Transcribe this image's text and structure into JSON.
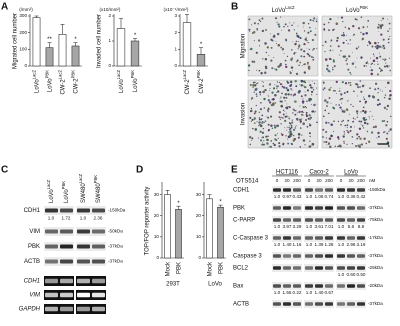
{
  "chart_data": [
    {
      "type": "bar",
      "unit": "(/mm²)",
      "ylabel": "Migrated cell number",
      "ylim": [
        0,
        300
      ],
      "yticks": [
        0,
        100,
        200,
        300
      ],
      "categories": [
        {
          "name": "LoVo",
          "sup": "LacZ"
        },
        {
          "name": "LoVo",
          "sup": "PBK"
        },
        {
          "name": "CW-2",
          "sup": "LacZ"
        },
        {
          "name": "CW-2",
          "sup": "PBK"
        }
      ],
      "values": [
        290,
        110,
        190,
        120
      ],
      "errors": [
        10,
        30,
        60,
        20
      ],
      "colors": [
        "#ffffff",
        "#a6a6a6",
        "#ffffff",
        "#a6a6a6"
      ],
      "annotations": [
        null,
        "**",
        null,
        "*"
      ]
    },
    {
      "type": "bar",
      "unit": "(x10/mm²)",
      "ylabel": "Invaded cell number",
      "ylim": [
        0,
        2
      ],
      "yticks": [
        0,
        1,
        2
      ],
      "categories": [
        {
          "name": "LoVo",
          "sup": "LacZ"
        },
        {
          "name": "LoVo",
          "sup": "PBK"
        }
      ],
      "values": [
        1.5,
        1.0
      ],
      "errors": [
        0.4,
        0.1
      ],
      "colors": [
        "#ffffff",
        "#a6a6a6"
      ],
      "annotations": [
        null,
        "*"
      ]
    },
    {
      "type": "bar",
      "unit": "(x10⁻¹/mm²)",
      "ylim": [
        0,
        3
      ],
      "yticks": [
        0,
        1,
        2,
        3
      ],
      "categories": [
        {
          "name": "CW-2",
          "sup": "LacZ"
        },
        {
          "name": "CW-2",
          "sup": "PBK"
        }
      ],
      "values": [
        2.6,
        0.7
      ],
      "errors": [
        0.5,
        0.4
      ],
      "colors": [
        "#ffffff",
        "#a6a6a6"
      ],
      "annotations": [
        null,
        "*"
      ]
    },
    {
      "type": "bar",
      "ylabel": "TOP/FOP reporter activity",
      "group": "293T",
      "ylim": [
        0,
        35
      ],
      "yticks": [
        0,
        10,
        20,
        30
      ],
      "categories": [
        {
          "name": "Mock"
        },
        {
          "name": "PBK"
        }
      ],
      "values": [
        30,
        23
      ],
      "errors": [
        2,
        1.5
      ],
      "colors": [
        "#ffffff",
        "#a6a6a6"
      ],
      "annotations": [
        null,
        "*"
      ]
    },
    {
      "type": "bar",
      "group": "LoVo",
      "ylim": [
        0,
        35
      ],
      "yticks": [
        0,
        10,
        20,
        30
      ],
      "categories": [
        {
          "name": "Mock"
        },
        {
          "name": "PBK"
        }
      ],
      "values": [
        28,
        24
      ],
      "errors": [
        2,
        1
      ],
      "colors": [
        "#ffffff",
        "#a6a6a6"
      ],
      "annotations": [
        null,
        "*"
      ]
    }
  ],
  "panels": {
    "A": {
      "label": "A"
    },
    "B": {
      "label": "B",
      "columns": [
        {
          "name": "LoVo",
          "sup": "LacZ"
        },
        {
          "name": "LoVo",
          "sup": "PBK"
        }
      ],
      "rows": [
        "Migration",
        "Invasion"
      ]
    },
    "C": {
      "label": "C",
      "lanes": [
        {
          "name": "LoVo",
          "sup": "LacZ"
        },
        {
          "name": "LoVo",
          "sup": "PBK"
        },
        {
          "name": "SW480",
          "sup": "LacZ"
        },
        {
          "name": "SW480",
          "sup": "PBK"
        }
      ],
      "blots": [
        {
          "name": "CDH1",
          "marker": "-150kDa",
          "quant": [
            "1.0",
            "1.72",
            "1.0",
            "2.36"
          ]
        },
        {
          "name": "VIM",
          "marker": "-50kDa"
        },
        {
          "name": "PBK",
          "marker": "-37kDa"
        },
        {
          "name": "ACTB",
          "marker": "-37kDa"
        }
      ],
      "pcr": [
        "CDH1",
        "VIM",
        "GAPDH"
      ]
    },
    "D": {
      "label": "D"
    },
    "E": {
      "label": "E",
      "treatment": "OTS514",
      "unit": "nM",
      "doses": [
        "0",
        "20",
        "200"
      ],
      "cell_lines": [
        "HCT116",
        "Caco-2",
        "LoVo"
      ],
      "blots": [
        {
          "name": "CDH1",
          "marker": "-150kDa",
          "quant": [
            "1.0",
            "0.97",
            "0.43",
            "1.0",
            "1.06",
            "0.74",
            "1.0",
            "0.36",
            "0.42"
          ]
        },
        {
          "name": "PBK",
          "marker": "-37kDa"
        },
        {
          "name": "C-PARP",
          "marker": "-75kDa",
          "quant": [
            "1.0",
            "3.97",
            "3.29",
            "1.0",
            "3.61",
            "7.01",
            "1.0",
            "5.6",
            "8.8"
          ]
        },
        {
          "name": "C-Caspase 3",
          "marker": "-17kDa",
          "quant": [
            "1.0",
            "1.40",
            "1.16",
            "1.0",
            "1.39",
            "1.28",
            "1.0",
            "2.96",
            "3.19"
          ]
        },
        {
          "name": "Caspase 3",
          "marker": "-37kDa"
        },
        {
          "name": "BCL2",
          "marker": "-25kDa",
          "quant": [
            null,
            null,
            null,
            null,
            null,
            null,
            "1.0",
            "0.60",
            "0.50"
          ]
        },
        {
          "name": "Bax",
          "marker": "-20kDa",
          "quant": [
            "1.0",
            "1.55",
            "0.22",
            "1.0",
            "1.40",
            "0.67",
            null,
            null,
            null
          ]
        },
        {
          "name": "ACTB",
          "marker": "-37kDa"
        }
      ]
    }
  }
}
